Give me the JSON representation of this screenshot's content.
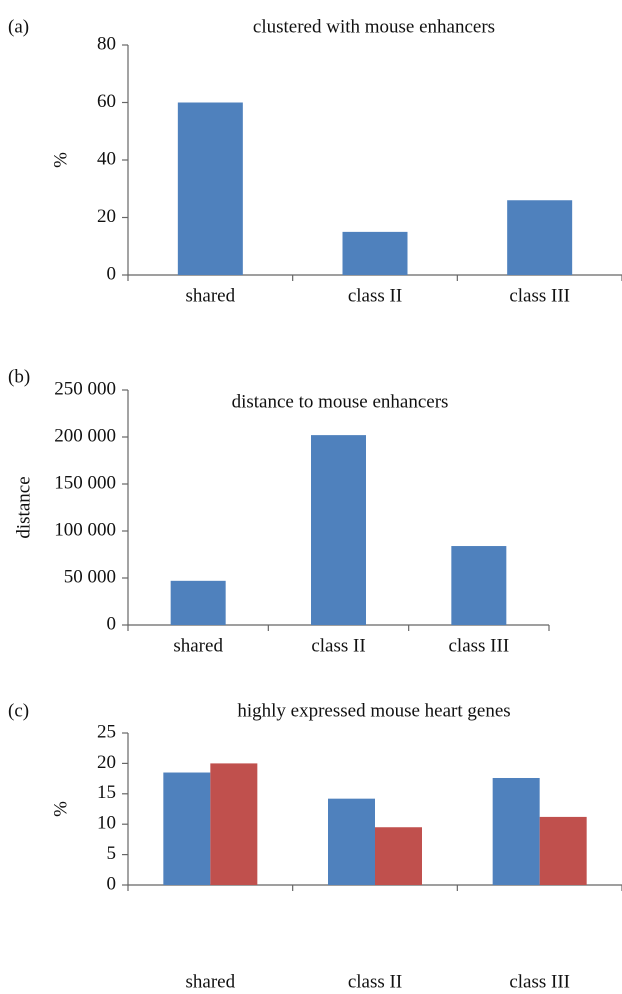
{
  "chart_data": [
    {
      "type": "bar",
      "panel": "(a)",
      "title": "clustered with mouse enhancers",
      "ylabel": "%",
      "categories": [
        "shared",
        "class II",
        "class III"
      ],
      "series": [
        {
          "color": "#4f81bd",
          "values": [
            60,
            15,
            26
          ]
        }
      ],
      "ylim": [
        0,
        80
      ],
      "yticks": [
        0,
        20,
        40,
        60,
        80
      ]
    },
    {
      "type": "bar",
      "panel": "(b)",
      "title": "distance to mouse enhancers",
      "ylabel": "distance",
      "categories": [
        "shared",
        "class II",
        "class III"
      ],
      "series": [
        {
          "color": "#4f81bd",
          "values": [
            47000,
            202000,
            84000
          ]
        }
      ],
      "ylim": [
        0,
        250000
      ],
      "yticks": [
        0,
        {
          "value": 50000,
          "label": "50 000"
        },
        {
          "value": 100000,
          "label": "100 000"
        },
        {
          "value": 150000,
          "label": "150 000"
        },
        {
          "value": 200000,
          "label": "200 000"
        },
        {
          "value": 250000,
          "label": "250 000"
        }
      ]
    },
    {
      "type": "bar",
      "panel": "(c)",
      "title": "highly expressed mouse heart genes",
      "ylabel": "%",
      "categories": [
        "shared",
        "class II",
        "class III"
      ],
      "series": [
        {
          "color": "#4f81bd",
          "values": [
            18.5,
            14.2,
            17.6
          ]
        },
        {
          "color": "#c0504d",
          "values": [
            20,
            9.5,
            11.2
          ]
        }
      ],
      "ylim": [
        0,
        25
      ],
      "yticks": [
        0,
        5,
        10,
        15,
        20,
        25
      ]
    }
  ]
}
